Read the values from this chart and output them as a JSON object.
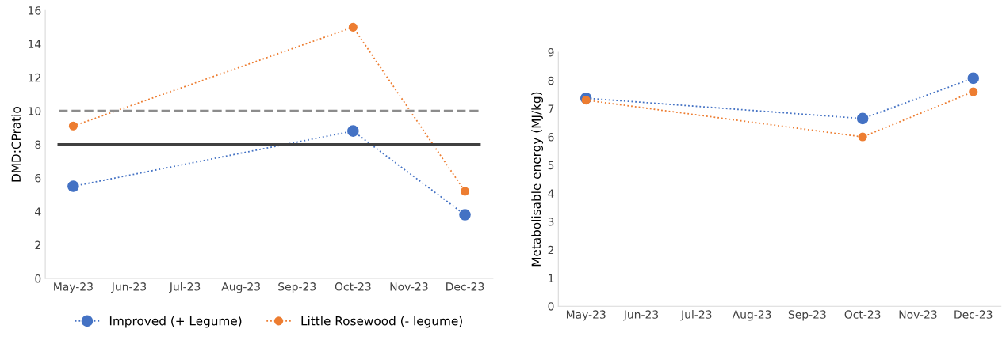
{
  "chart_data": [
    {
      "type": "line",
      "ylabel": "DMD:CPratio",
      "categories": [
        "May-23",
        "Jun-23",
        "Jul-23",
        "Aug-23",
        "Sep-23",
        "Oct-23",
        "Nov-23",
        "Dec-23"
      ],
      "series": [
        {
          "name": "Improved (+ Legume)",
          "color": "#4472c4",
          "values": [
            5.5,
            null,
            null,
            null,
            null,
            8.8,
            null,
            3.8
          ]
        },
        {
          "name": "Little Rosewood (- legume)",
          "color": "#ed7d31",
          "values": [
            9.1,
            null,
            null,
            null,
            null,
            15.0,
            null,
            5.2
          ]
        }
      ],
      "ref_lines": [
        {
          "axis": "y",
          "value": 10,
          "color": "#8c8c8c",
          "line_style": "dashed"
        },
        {
          "axis": "y",
          "value": 8,
          "color": "#404040",
          "line_style": "solid"
        }
      ],
      "ylim": [
        0,
        16
      ],
      "yticks": [
        0,
        2,
        4,
        6,
        8,
        10,
        12,
        14,
        16
      ],
      "marker": "circle",
      "line_style": "dotted",
      "legend": "bottom",
      "grid": false
    },
    {
      "type": "line",
      "ylabel": "Metabolisable energy (MJ/kg)",
      "categories": [
        "May-23",
        "Jun-23",
        "Jul-23",
        "Aug-23",
        "Sep-23",
        "Oct-23",
        "Nov-23",
        "Dec-23"
      ],
      "series": [
        {
          "color": "#4472c4",
          "values": [
            7.37,
            null,
            null,
            null,
            null,
            6.65,
            null,
            8.08
          ]
        },
        {
          "color": "#ed7d31",
          "values": [
            7.3,
            null,
            null,
            null,
            null,
            6.0,
            null,
            7.6
          ]
        }
      ],
      "ylim": [
        0,
        9
      ],
      "yticks": [
        0,
        1,
        2,
        3,
        4,
        5,
        6,
        7,
        8,
        9
      ],
      "marker": "circle",
      "line_style": "dotted",
      "grid": false
    }
  ]
}
